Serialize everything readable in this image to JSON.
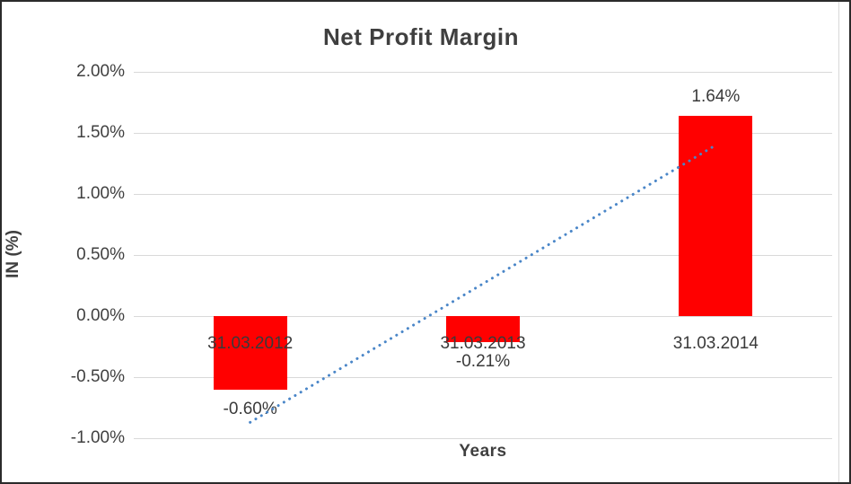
{
  "chart_data": {
    "type": "bar",
    "title": "Net Profit Margin",
    "xlabel": "Years",
    "ylabel": "IN (%)",
    "categories": [
      "31.03.2012",
      "31.03.2013",
      "31.03.2014"
    ],
    "values": [
      -0.6,
      -0.21,
      1.64
    ],
    "data_labels": [
      "-0.60%",
      "-0.21%",
      "1.64%"
    ],
    "y_ticks": [
      {
        "label": "2.00%",
        "value": 2.0
      },
      {
        "label": "1.50%",
        "value": 1.5
      },
      {
        "label": "1.00%",
        "value": 1.0
      },
      {
        "label": "0.50%",
        "value": 0.5
      },
      {
        "label": "0.00%",
        "value": 0.0
      },
      {
        "label": "-0.50%",
        "value": -0.5
      },
      {
        "label": "-1.00%",
        "value": -1.0
      }
    ],
    "ylim": [
      -1.0,
      2.0
    ],
    "grid": true,
    "legend": false,
    "bar_color": "#ff0000",
    "gridline_color": "#d9d9d9",
    "text_color": "#404040",
    "trendline": {
      "type": "linear",
      "style": "dotted",
      "color": "#4a86c8",
      "start_value": -0.87,
      "end_value": 1.4
    }
  }
}
